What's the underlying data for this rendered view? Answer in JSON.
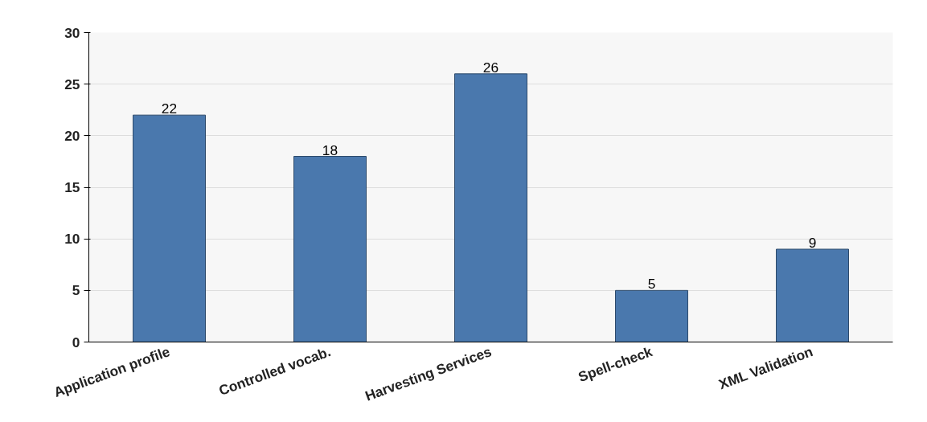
{
  "chart_data": {
    "type": "bar",
    "categories": [
      "Application profile",
      "Controlled vocab.",
      "Harvesting Services",
      "Spell-check",
      "XML Validation"
    ],
    "values": [
      22,
      18,
      26,
      5,
      9
    ],
    "color": "#4a78ad",
    "ylim": [
      0,
      30
    ],
    "yticks": [
      0,
      5,
      10,
      15,
      20,
      25,
      30
    ],
    "grid": "y",
    "data_labels": true
  }
}
